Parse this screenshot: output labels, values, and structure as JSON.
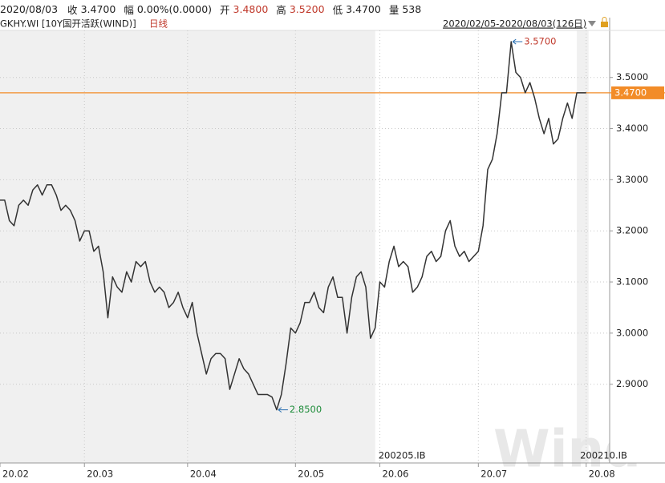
{
  "header": {
    "date": "2020/08/03",
    "items": [
      {
        "name": "收",
        "value": "3.4700"
      },
      {
        "name": "幅",
        "value": "0.00%(0.0000)"
      },
      {
        "name": "开",
        "value": "3.4800"
      },
      {
        "name": "高",
        "value": "3.5200"
      },
      {
        "name": "低",
        "value": "3.4700"
      },
      {
        "name": "量",
        "value": "538"
      }
    ]
  },
  "chart_data": {
    "type": "line",
    "title": "GKHY.WI [10Y国开活跃(WIND)]",
    "period": "日线",
    "range": "2020/02/05-2020/08/03(126日)",
    "watermark": "Wind",
    "color": "#333333",
    "values": [
      3.26,
      3.26,
      3.22,
      3.21,
      3.25,
      3.26,
      3.25,
      3.28,
      3.29,
      3.27,
      3.29,
      3.29,
      3.27,
      3.24,
      3.25,
      3.24,
      3.22,
      3.18,
      3.2,
      3.2,
      3.16,
      3.17,
      3.12,
      3.03,
      3.11,
      3.09,
      3.08,
      3.12,
      3.1,
      3.14,
      3.13,
      3.14,
      3.1,
      3.08,
      3.09,
      3.08,
      3.05,
      3.06,
      3.08,
      3.05,
      3.03,
      3.06,
      3.0,
      2.96,
      2.92,
      2.95,
      2.96,
      2.96,
      2.95,
      2.89,
      2.92,
      2.95,
      2.93,
      2.92,
      2.9,
      2.88,
      2.88,
      2.88,
      2.875,
      2.85,
      2.88,
      2.94,
      3.01,
      3.0,
      3.02,
      3.06,
      3.06,
      3.08,
      3.05,
      3.04,
      3.09,
      3.11,
      3.07,
      3.07,
      3.0,
      3.07,
      3.11,
      3.12,
      3.09,
      2.99,
      3.01,
      3.1,
      3.09,
      3.14,
      3.17,
      3.13,
      3.14,
      3.13,
      3.08,
      3.09,
      3.11,
      3.15,
      3.16,
      3.14,
      3.15,
      3.2,
      3.22,
      3.17,
      3.15,
      3.16,
      3.14,
      3.15,
      3.16,
      3.21,
      3.32,
      3.34,
      3.39,
      3.47,
      3.47,
      3.57,
      3.51,
      3.5,
      3.47,
      3.49,
      3.46,
      3.42,
      3.39,
      3.42,
      3.37,
      3.38,
      3.42,
      3.45,
      3.42,
      3.47,
      3.47,
      3.47
    ],
    "xlim": [
      0,
      130
    ],
    "xticks": [
      {
        "value": 0,
        "label": "20.02"
      },
      {
        "value": 18,
        "label": "20.03"
      },
      {
        "value": 40,
        "label": "20.04"
      },
      {
        "value": 63,
        "label": "20.05"
      },
      {
        "value": 81,
        "label": "20.06"
      },
      {
        "value": 102,
        "label": "20.07"
      },
      {
        "value": 125,
        "label": "20.08"
      }
    ],
    "ylim": [
      2.746,
      3.592
    ],
    "yticks": [
      {
        "value": 2.9,
        "label": "2.9000"
      },
      {
        "value": 3.0,
        "label": "3.0000"
      },
      {
        "value": 3.1,
        "label": "3.1000"
      },
      {
        "value": 3.2,
        "label": "3.2000"
      },
      {
        "value": 3.3,
        "label": "3.3000"
      },
      {
        "value": 3.4,
        "label": "3.4000"
      },
      {
        "value": 3.5,
        "label": "3.5000"
      }
    ],
    "grid": true,
    "last_value": {
      "value": 3.47,
      "label": "3.4700",
      "color": "#f28c28"
    },
    "contracts": [
      {
        "label": "200205.IB",
        "start": 80
      },
      {
        "label": "200210.IB",
        "start": 123
      }
    ],
    "annotations": [
      {
        "index": 109,
        "value": 3.57,
        "label": "3.5700",
        "color": "#c0392b"
      },
      {
        "index": 59,
        "value": 2.85,
        "label": "2.8500",
        "color": "#1e8c3a"
      }
    ]
  }
}
